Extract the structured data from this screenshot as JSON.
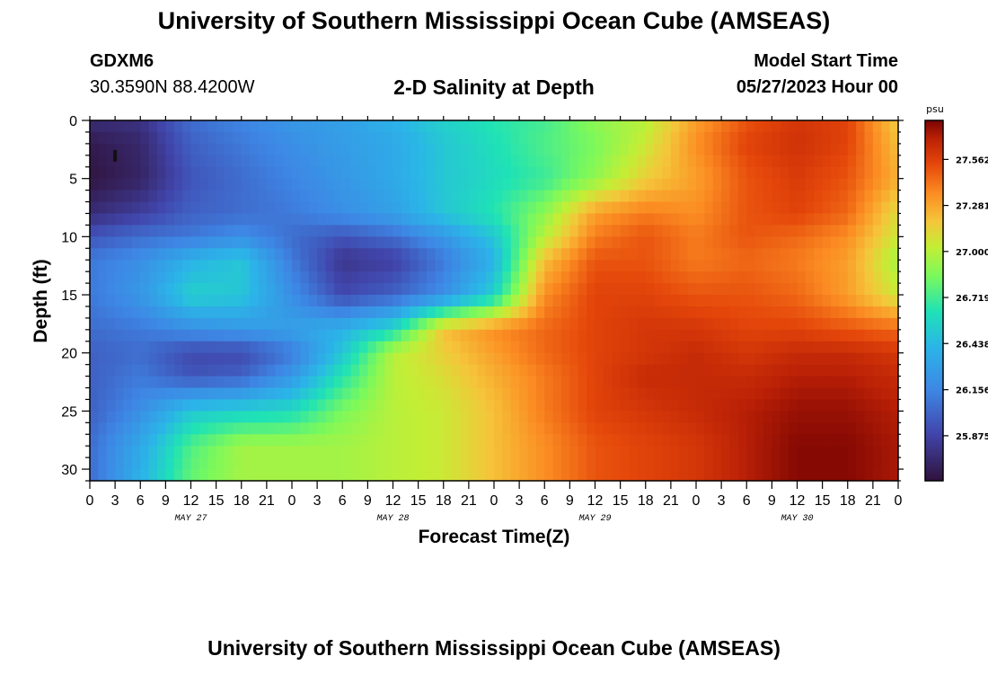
{
  "header": {
    "title": "University of Southern Mississippi Ocean Cube (AMSEAS)",
    "station_id": "GDXM6",
    "coordinates": "30.3590N  88.4200W",
    "plot_title": "2-D Salinity at Depth",
    "model_start_label": "Model Start Time",
    "model_start_value": "05/27/2023 Hour 00"
  },
  "footer": {
    "title": "University of Southern Mississippi Ocean Cube (AMSEAS)"
  },
  "colors": {
    "axis": "#000000",
    "marker": "#111111"
  },
  "chart_data": {
    "type": "heatmap",
    "title": "2-D Salinity at Depth",
    "xlabel": "Forecast Time(Z)",
    "ylabel": "Depth (ft)",
    "x_range_hours": [
      0,
      96
    ],
    "y_range_ft": [
      0,
      31
    ],
    "y_inverted": true,
    "x_tick_step_hours": 3,
    "x_tick_labels": [
      "0",
      "3",
      "6",
      "9",
      "12",
      "15",
      "18",
      "21",
      "0",
      "3",
      "6",
      "9",
      "12",
      "15",
      "18",
      "21",
      "0",
      "3",
      "6",
      "9",
      "12",
      "15",
      "18",
      "21",
      "0",
      "3",
      "6",
      "9",
      "12",
      "15",
      "18",
      "21",
      "0"
    ],
    "day_labels": [
      {
        "label": "MAY 27",
        "hour": 12
      },
      {
        "label": "MAY 28",
        "hour": 36
      },
      {
        "label": "MAY 29",
        "hour": 60
      },
      {
        "label": "MAY 30",
        "hour": 84
      }
    ],
    "y_ticks": [
      0,
      5,
      10,
      15,
      20,
      25,
      30
    ],
    "colorbar": {
      "unit": "psu",
      "range": [
        25.6,
        27.8
      ],
      "ticks": [
        "27.562",
        "27.281",
        "27.000",
        "26.719",
        "26.438",
        "26.156",
        "25.875"
      ]
    },
    "marker": {
      "hour": 3,
      "depth_ft": 3
    },
    "grid_hours": [
      0,
      6,
      12,
      18,
      24,
      30,
      36,
      42,
      48,
      54,
      60,
      66,
      72,
      78,
      84,
      90,
      96
    ],
    "grid_depths_ft": [
      0,
      2,
      5,
      8,
      10,
      12,
      15,
      18,
      20,
      22,
      25,
      28,
      31
    ],
    "salinity_psu": [
      [
        25.75,
        25.78,
        26.05,
        26.15,
        26.25,
        26.3,
        26.4,
        26.55,
        26.65,
        26.72,
        26.9,
        27.0,
        27.3,
        27.5,
        27.6,
        27.55,
        27.15
      ],
      [
        25.65,
        25.72,
        26.0,
        26.1,
        26.2,
        26.28,
        26.35,
        26.5,
        26.62,
        26.75,
        26.85,
        27.05,
        27.35,
        27.55,
        27.62,
        27.55,
        27.2
      ],
      [
        25.62,
        25.7,
        25.95,
        26.05,
        26.15,
        26.25,
        26.35,
        26.5,
        26.6,
        26.7,
        26.9,
        27.15,
        27.3,
        27.5,
        27.58,
        27.5,
        27.25
      ],
      [
        25.75,
        25.85,
        26.0,
        26.05,
        26.1,
        26.2,
        26.3,
        26.5,
        26.65,
        26.9,
        27.3,
        27.4,
        27.35,
        27.5,
        27.55,
        27.45,
        27.1
      ],
      [
        25.95,
        26.05,
        26.1,
        26.2,
        26.05,
        25.95,
        26.05,
        26.25,
        26.5,
        27.0,
        27.4,
        27.5,
        27.4,
        27.5,
        27.45,
        27.35,
        27.05
      ],
      [
        26.1,
        26.2,
        26.4,
        26.5,
        26.1,
        25.8,
        25.85,
        26.1,
        26.4,
        27.2,
        27.5,
        27.5,
        27.4,
        27.45,
        27.4,
        27.3,
        26.95
      ],
      [
        26.1,
        26.25,
        26.55,
        26.5,
        26.2,
        25.9,
        26.0,
        26.2,
        26.55,
        27.35,
        27.55,
        27.55,
        27.5,
        27.5,
        27.45,
        27.3,
        27.05
      ],
      [
        26.05,
        26.1,
        26.2,
        26.25,
        26.3,
        26.4,
        26.6,
        27.2,
        27.35,
        27.45,
        27.55,
        27.6,
        27.6,
        27.55,
        27.55,
        27.5,
        27.45
      ],
      [
        26.0,
        26.05,
        25.9,
        25.9,
        26.1,
        26.5,
        27.0,
        27.15,
        27.3,
        27.45,
        27.55,
        27.6,
        27.65,
        27.6,
        27.65,
        27.65,
        27.6
      ],
      [
        26.0,
        26.1,
        25.95,
        26.0,
        26.25,
        26.65,
        27.0,
        27.1,
        27.25,
        27.4,
        27.55,
        27.65,
        27.65,
        27.65,
        27.7,
        27.7,
        27.65
      ],
      [
        26.0,
        26.2,
        26.5,
        26.55,
        26.6,
        26.85,
        27.0,
        27.05,
        27.2,
        27.4,
        27.55,
        27.6,
        27.65,
        27.7,
        27.75,
        27.75,
        27.7
      ],
      [
        26.05,
        26.35,
        26.75,
        26.95,
        26.95,
        26.95,
        27.0,
        27.05,
        27.2,
        27.35,
        27.5,
        27.55,
        27.6,
        27.7,
        27.78,
        27.78,
        27.72
      ],
      [
        26.05,
        26.4,
        26.8,
        26.95,
        26.95,
        26.95,
        27.0,
        27.05,
        27.2,
        27.35,
        27.5,
        27.55,
        27.6,
        27.7,
        27.78,
        27.78,
        27.72
      ]
    ]
  }
}
